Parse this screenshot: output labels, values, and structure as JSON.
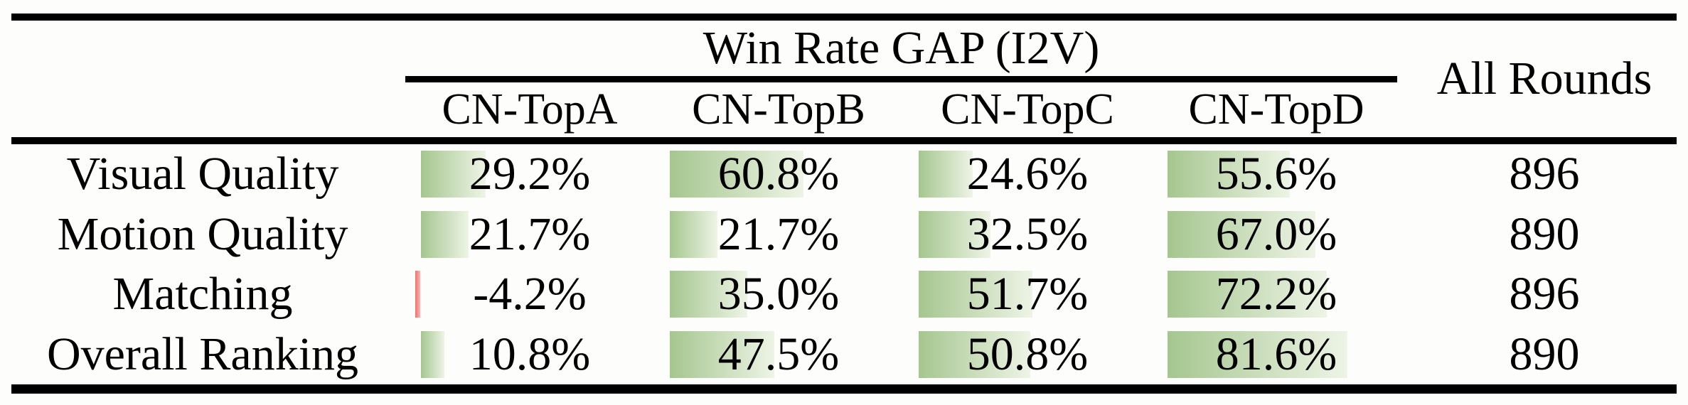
{
  "table": {
    "group_title": "Win Rate GAP (I2V)",
    "columns": [
      "CN-TopA",
      "CN-TopB",
      "CN-TopC",
      "CN-TopD"
    ],
    "all_rounds_label": "All Rounds",
    "rows": [
      {
        "label": "Visual Quality",
        "cells": [
          {
            "display": "29.2%",
            "value": 29.2
          },
          {
            "display": "60.8%",
            "value": 60.8
          },
          {
            "display": "24.6%",
            "value": 24.6
          },
          {
            "display": "55.6%",
            "value": 55.6
          }
        ],
        "all_rounds": "896"
      },
      {
        "label": "Motion Quality",
        "cells": [
          {
            "display": "21.7%",
            "value": 21.7
          },
          {
            "display": "21.7%",
            "value": 21.7
          },
          {
            "display": "32.5%",
            "value": 32.5
          },
          {
            "display": "67.0%",
            "value": 67.0
          }
        ],
        "all_rounds": "890"
      },
      {
        "label": "Matching",
        "cells": [
          {
            "display": "-4.2%",
            "value": -4.2
          },
          {
            "display": "35.0%",
            "value": 35.0
          },
          {
            "display": "51.7%",
            "value": 51.7
          },
          {
            "display": "72.2%",
            "value": 72.2
          }
        ],
        "all_rounds": "896"
      },
      {
        "label": "Overall Ranking",
        "cells": [
          {
            "display": "10.8%",
            "value": 10.8
          },
          {
            "display": "47.5%",
            "value": 47.5
          },
          {
            "display": "50.8%",
            "value": 50.8
          },
          {
            "display": "81.6%",
            "value": 81.6
          }
        ],
        "all_rounds": "890"
      }
    ]
  },
  "colors": {
    "bar_green": "#a5c68f",
    "bar_green_light": "#eef4e6",
    "bar_red": "#f36f6f",
    "bar_red_light": "#fbb3b3",
    "rule_black": "#000000"
  },
  "chart_data": {
    "type": "table",
    "title": "Win Rate GAP (I2V)",
    "categories": [
      "Visual Quality",
      "Motion Quality",
      "Matching",
      "Overall Ranking"
    ],
    "series": [
      {
        "name": "CN-TopA",
        "values": [
          29.2,
          21.7,
          -4.2,
          10.8
        ]
      },
      {
        "name": "CN-TopB",
        "values": [
          60.8,
          21.7,
          35.0,
          47.5
        ]
      },
      {
        "name": "CN-TopC",
        "values": [
          24.6,
          32.5,
          51.7,
          50.8
        ]
      },
      {
        "name": "CN-TopD",
        "values": [
          55.6,
          67.0,
          72.2,
          81.6
        ]
      }
    ],
    "extra_column": {
      "name": "All Rounds",
      "values": [
        896,
        890,
        896,
        890
      ]
    },
    "unit": "%",
    "layout": "in-cell gradient data bars scaled to percent value, negative values drawn as thin red bar"
  }
}
